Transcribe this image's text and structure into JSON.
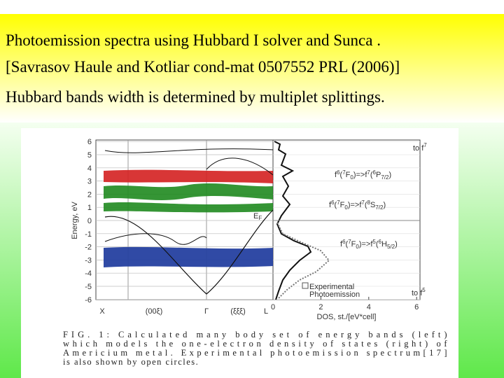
{
  "header": {
    "lines": [
      "Photoemission spectra using Hubbard I solver  and Sunca .",
      "[Savrasov Haule and Kotliar cond-mat 0507552 PRL (2006)]",
      "Hubbard bands width is determined  by multiplet splittings."
    ]
  },
  "figure": {
    "y_axis_label": "Energy, eV",
    "energy_ticks": [
      6,
      5,
      4,
      3,
      2,
      1,
      0,
      -1,
      -2,
      -3,
      -4,
      -5,
      -6
    ],
    "dos_ticks": [
      0,
      2,
      4,
      6
    ],
    "dos_axis_label": "DOS, st./[eV*cell]",
    "k_labels": [
      "X",
      "(00ξ)",
      "Γ",
      "(ξξξ)",
      "L"
    ],
    "fermi_label": [
      "E",
      "F"
    ],
    "top_label": [
      "to f",
      "7"
    ],
    "bottom_label": [
      "to f",
      "5"
    ],
    "annotations": [
      [
        "f",
        "6",
        "(",
        "7",
        "F",
        "0",
        ")=>f",
        "7",
        "(",
        "6",
        "P",
        "7/2",
        ")"
      ],
      [
        "f",
        "6",
        "(",
        "7",
        "F",
        "0",
        ")=>f",
        "7",
        "(",
        "8",
        "S",
        "7/2",
        ")"
      ],
      [
        "f",
        "6",
        "(",
        "7",
        "F",
        "0",
        ")=>f",
        "5",
        "(",
        "6",
        "H",
        "5/2",
        ")"
      ]
    ],
    "legend": [
      "Experimental",
      "Photoemission"
    ],
    "caption": [
      "FIG. 1: Calculated many body set of energy bands (left)",
      "which models the one-electron density of states (right) of",
      "Americium metal. Experimental photoemission spectrum[17]",
      "is also shown by open circles."
    ]
  }
}
